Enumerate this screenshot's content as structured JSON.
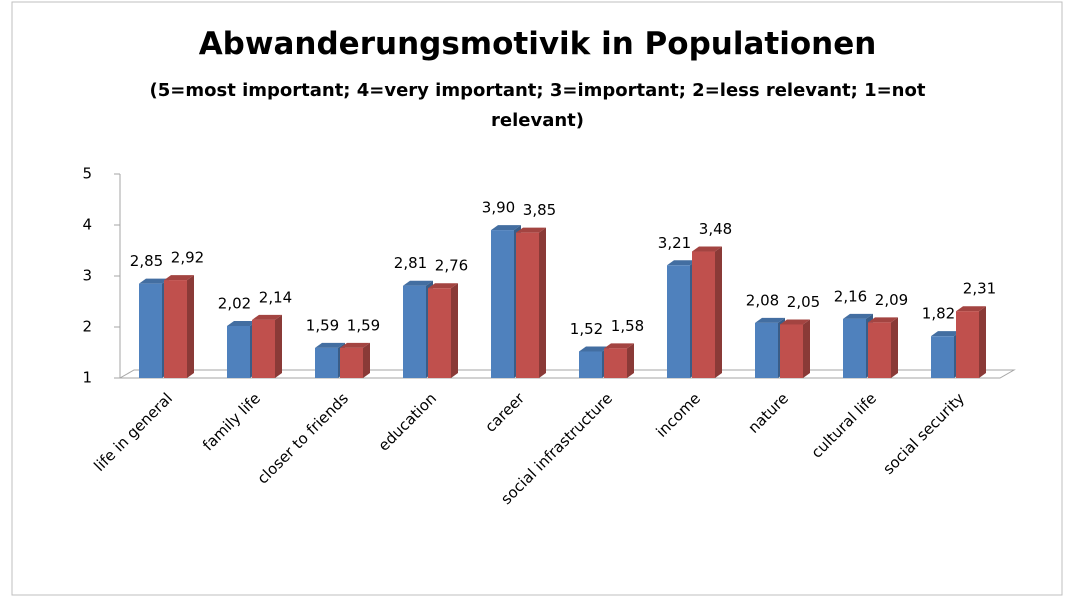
{
  "chart_data": {
    "type": "bar3d",
    "title": "Abwanderungsmotivik in Populationen",
    "subtitle": "(5=most important; 4=very important; 3=important; 2=less relevant; 1=not relevant)",
    "categories": [
      "life in general",
      "family life",
      "closer to friends",
      "education",
      "career",
      "social infrastructure",
      "income",
      "nature",
      "cultural life",
      "social security"
    ],
    "series": [
      {
        "color": "#4f81bd",
        "values": [
          2.85,
          2.02,
          1.59,
          2.81,
          3.9,
          1.52,
          3.21,
          2.08,
          2.16,
          1.82
        ],
        "value_labels": [
          "2,85",
          "2,02",
          "1,59",
          "2,81",
          "3,90",
          "1,52",
          "3,21",
          "2,08",
          "2,16",
          "1,82"
        ]
      },
      {
        "color": "#c0504d",
        "values": [
          2.92,
          2.14,
          1.59,
          2.76,
          3.85,
          1.58,
          3.48,
          2.05,
          2.09,
          2.31
        ],
        "value_labels": [
          "2,92",
          "2,14",
          "1,59",
          "2,76",
          "3,85",
          "1,58",
          "3,48",
          "2,05",
          "2,09",
          "2,31"
        ]
      }
    ],
    "ylim": [
      1,
      5
    ],
    "yticks": [
      1,
      2,
      3,
      4,
      5
    ],
    "grid": false
  }
}
